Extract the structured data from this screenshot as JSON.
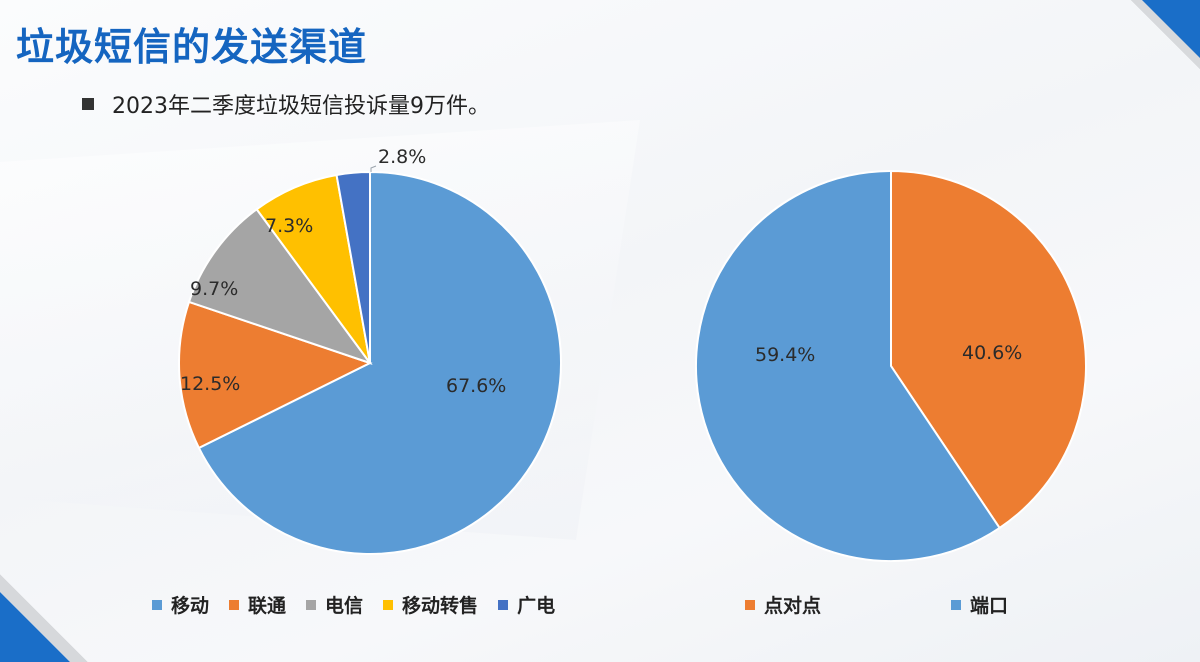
{
  "slide": {
    "title": "垃圾短信的发送渠道",
    "bullet": "2023年二季度垃圾短信投诉量9万件。"
  },
  "colors": {
    "title": "#1565c0",
    "corner_accent": "#1a6ec8"
  },
  "chart_data": [
    {
      "type": "pie",
      "title": "",
      "categories": [
        "移动",
        "联通",
        "电信",
        "移动转售",
        "广电"
      ],
      "values": [
        67.6,
        12.5,
        9.7,
        7.3,
        2.8
      ],
      "labels": [
        "67.6%",
        "12.5%",
        "9.7%",
        "7.3%",
        "2.8%"
      ],
      "colors": [
        "#5b9bd5",
        "#ed7d31",
        "#a5a5a5",
        "#ffc000",
        "#4472c4"
      ],
      "start_angle": "12 o'clock, clockwise",
      "legend_position": "bottom"
    },
    {
      "type": "pie",
      "title": "",
      "categories": [
        "点对点",
        "端口"
      ],
      "values": [
        40.6,
        59.4
      ],
      "labels": [
        "40.6%",
        "59.4%"
      ],
      "colors": [
        "#ed7d31",
        "#5b9bd5"
      ],
      "start_angle": "12 o'clock, clockwise",
      "legend_position": "bottom"
    }
  ],
  "legend_left": [
    {
      "label": "移动",
      "color": "#5b9bd5"
    },
    {
      "label": "联通",
      "color": "#ed7d31"
    },
    {
      "label": "电信",
      "color": "#a5a5a5"
    },
    {
      "label": "移动转售",
      "color": "#ffc000"
    },
    {
      "label": "广电",
      "color": "#4472c4"
    }
  ],
  "legend_right": [
    {
      "label": "点对点",
      "color": "#ed7d31"
    },
    {
      "label": "端口",
      "color": "#5b9bd5"
    }
  ]
}
